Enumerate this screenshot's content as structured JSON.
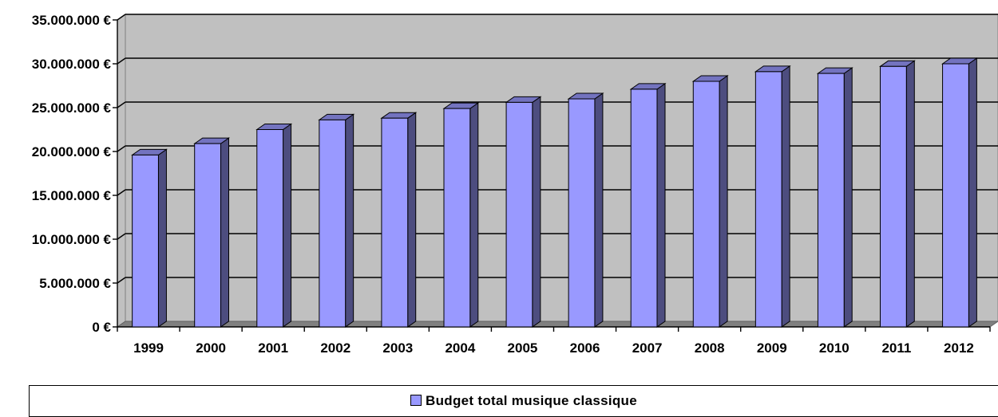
{
  "chart_data": {
    "type": "bar",
    "categories": [
      "1999",
      "2000",
      "2001",
      "2002",
      "2003",
      "2004",
      "2005",
      "2006",
      "2007",
      "2008",
      "2009",
      "2010",
      "2011",
      "2012"
    ],
    "series": [
      {
        "name": "Budget total musique classique",
        "values": [
          19600000,
          20900000,
          22500000,
          23600000,
          23800000,
          24900000,
          25600000,
          26000000,
          27100000,
          28000000,
          29100000,
          28900000,
          29700000,
          30000000
        ]
      }
    ],
    "ylim": [
      0,
      35000000
    ],
    "yticks": [
      0,
      5000000,
      10000000,
      15000000,
      20000000,
      25000000,
      30000000,
      35000000
    ],
    "ytick_labels": [
      "0 €",
      "5.000.000 €",
      "10.000.000 €",
      "15.000.000 €",
      "20.000.000 €",
      "25.000.000 €",
      "30.000.000 €",
      "35.000.000 €"
    ],
    "grid": true,
    "legend_position": "bottom",
    "colors": {
      "bar_front": "#9999ff",
      "bar_side": "#4d4d7f",
      "bar_top": "#7373bf",
      "plot_back": "#c0c0c0",
      "floor": "#808080"
    }
  }
}
